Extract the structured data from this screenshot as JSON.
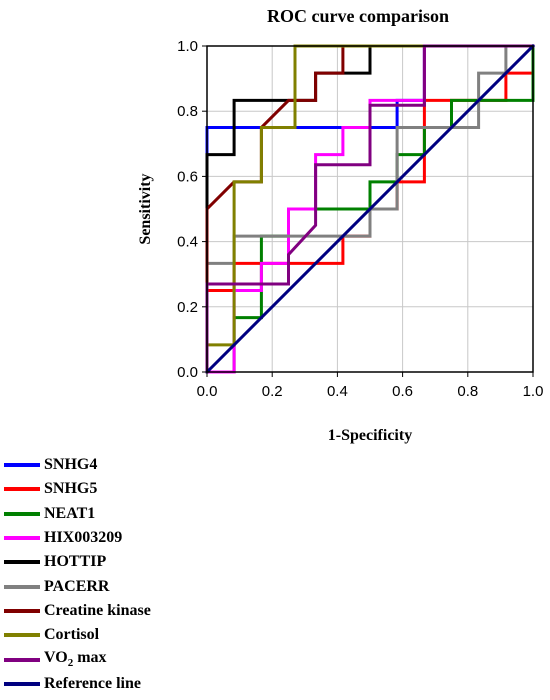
{
  "chart_data": {
    "type": "line",
    "title": "ROC curve comparison",
    "xlabel": "1-Specificity",
    "ylabel": "Sensitivity",
    "xlim": [
      0,
      1
    ],
    "ylim": [
      0,
      1
    ],
    "xticks": [
      "0.0",
      "0.2",
      "0.4",
      "0.6",
      "0.8",
      "1.0"
    ],
    "yticks": [
      "0.0",
      "0.2",
      "0.4",
      "0.6",
      "0.8",
      "1.0"
    ],
    "grid": true,
    "legend_position": "bottom-left",
    "series": [
      {
        "name": "SNHG4",
        "color": "#0000ff",
        "points": [
          [
            0,
            0
          ],
          [
            0,
            0.667
          ],
          [
            0,
            0.75
          ],
          [
            0.583,
            0.75
          ],
          [
            0.583,
            0.833
          ],
          [
            0.667,
            0.833
          ],
          [
            0.667,
            1
          ],
          [
            1,
            1
          ]
        ]
      },
      {
        "name": "SNHG5",
        "color": "#ff0000",
        "points": [
          [
            0,
            0
          ],
          [
            0,
            0.25
          ],
          [
            0.083,
            0.25
          ],
          [
            0.083,
            0.333
          ],
          [
            0.417,
            0.333
          ],
          [
            0.417,
            0.417
          ],
          [
            0.5,
            0.417
          ],
          [
            0.5,
            0.5
          ],
          [
            0.583,
            0.5
          ],
          [
            0.583,
            0.583
          ],
          [
            0.667,
            0.583
          ],
          [
            0.667,
            0.833
          ],
          [
            0.917,
            0.833
          ],
          [
            0.917,
            0.917
          ],
          [
            1,
            0.917
          ],
          [
            1,
            1
          ]
        ]
      },
      {
        "name": "NEAT1",
        "color": "#008000",
        "points": [
          [
            0,
            0
          ],
          [
            0.083,
            0
          ],
          [
            0.083,
            0.167
          ],
          [
            0.167,
            0.167
          ],
          [
            0.167,
            0.417
          ],
          [
            0.25,
            0.417
          ],
          [
            0.25,
            0.5
          ],
          [
            0.417,
            0.5
          ],
          [
            0.417,
            0.5
          ],
          [
            0.5,
            0.5
          ],
          [
            0.5,
            0.583
          ],
          [
            0.583,
            0.583
          ],
          [
            0.583,
            0.667
          ],
          [
            0.667,
            0.667
          ],
          [
            0.667,
            0.75
          ],
          [
            0.75,
            0.75
          ],
          [
            0.75,
            0.833
          ],
          [
            1,
            0.833
          ],
          [
            1,
            1
          ]
        ]
      },
      {
        "name": "HIX003209",
        "color": "#ff00ff",
        "points": [
          [
            0,
            0
          ],
          [
            0.083,
            0
          ],
          [
            0.083,
            0.25
          ],
          [
            0.167,
            0.25
          ],
          [
            0.167,
            0.333
          ],
          [
            0.25,
            0.333
          ],
          [
            0.25,
            0.5
          ],
          [
            0.333,
            0.5
          ],
          [
            0.333,
            0.667
          ],
          [
            0.417,
            0.667
          ],
          [
            0.417,
            0.75
          ],
          [
            0.5,
            0.75
          ],
          [
            0.5,
            0.833
          ],
          [
            0.667,
            0.833
          ],
          [
            0.667,
            1
          ],
          [
            1,
            1
          ]
        ]
      },
      {
        "name": "HOTTIP",
        "color": "#000000",
        "points": [
          [
            0,
            0
          ],
          [
            0,
            0.583
          ],
          [
            0,
            0.667
          ],
          [
            0.083,
            0.667
          ],
          [
            0.083,
            0.833
          ],
          [
            0.25,
            0.833
          ],
          [
            0.25,
            0.833
          ],
          [
            0.333,
            0.833
          ],
          [
            0.333,
            0.917
          ],
          [
            0.5,
            0.917
          ],
          [
            0.5,
            1
          ],
          [
            1,
            1
          ]
        ]
      },
      {
        "name": "PACERR",
        "color": "#808080",
        "points": [
          [
            0,
            0
          ],
          [
            0,
            0.333
          ],
          [
            0.083,
            0.333
          ],
          [
            0.083,
            0.417
          ],
          [
            0.5,
            0.417
          ],
          [
            0.5,
            0.5
          ],
          [
            0.5,
            0.5
          ],
          [
            0.583,
            0.5
          ],
          [
            0.583,
            0.75
          ],
          [
            0.833,
            0.75
          ],
          [
            0.833,
            0.917
          ],
          [
            0.917,
            0.917
          ],
          [
            0.917,
            1
          ],
          [
            1,
            1
          ]
        ]
      },
      {
        "name": "Creatine kinase",
        "color": "#800000",
        "points": [
          [
            0,
            0
          ],
          [
            0,
            0.5
          ],
          [
            0.083,
            0.583
          ],
          [
            0.167,
            0.583
          ],
          [
            0.167,
            0.75
          ],
          [
            0.25,
            0.833
          ],
          [
            0.25,
            0.833
          ],
          [
            0.333,
            0.833
          ],
          [
            0.333,
            0.917
          ],
          [
            0.417,
            0.917
          ],
          [
            0.417,
            1
          ],
          [
            1,
            1
          ]
        ]
      },
      {
        "name": "Cortisol",
        "color": "#808000",
        "points": [
          [
            0,
            0
          ],
          [
            0,
            0.083
          ],
          [
            0.083,
            0.083
          ],
          [
            0.083,
            0.583
          ],
          [
            0.167,
            0.583
          ],
          [
            0.167,
            0.75
          ],
          [
            0.25,
            0.75
          ],
          [
            0.25,
            0.75
          ],
          [
            0.25,
            0.75
          ],
          [
            0.27,
            0.75
          ],
          [
            0.27,
            1
          ],
          [
            1,
            1
          ]
        ]
      },
      {
        "name": "VO2 max",
        "color": "#800080",
        "points": [
          [
            0,
            0
          ],
          [
            0,
            0.27
          ],
          [
            0.25,
            0.27
          ],
          [
            0.25,
            0.36
          ],
          [
            0.333,
            0.45
          ],
          [
            0.333,
            0.636
          ],
          [
            0.5,
            0.636
          ],
          [
            0.5,
            0.818
          ],
          [
            0.667,
            0.818
          ],
          [
            0.667,
            1
          ],
          [
            1,
            1
          ]
        ]
      },
      {
        "name": "Reference line",
        "color": "#000080",
        "points": [
          [
            0,
            0
          ],
          [
            1,
            1
          ]
        ]
      }
    ]
  }
}
